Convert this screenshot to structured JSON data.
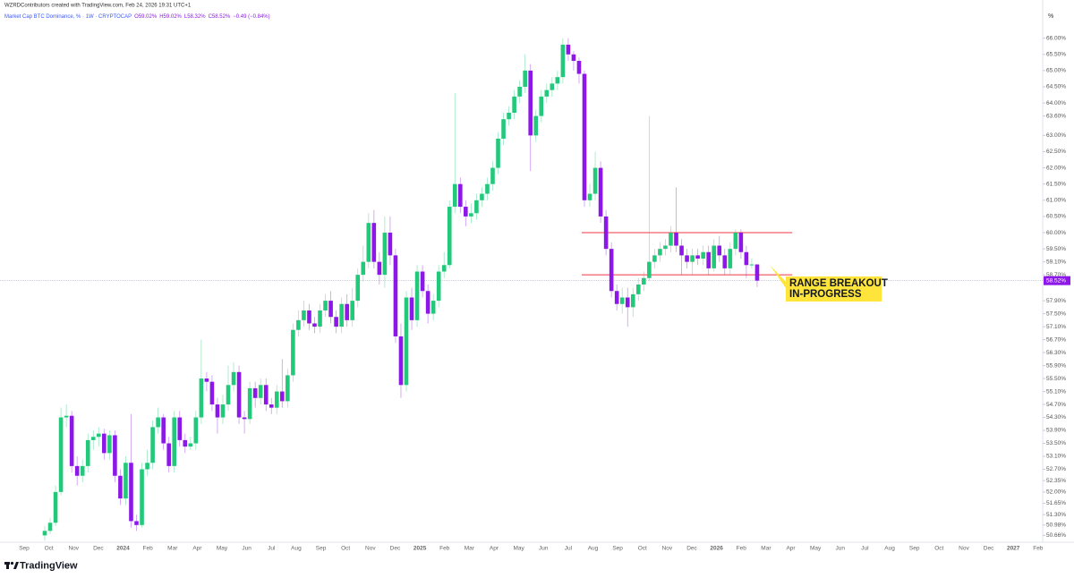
{
  "chart_data": {
    "type": "candlestick",
    "attribution": "WZRDContributors created with TradingView.com, Feb 24, 2026 19:31 UTC+1",
    "title": "Market Cap BTC Dominance, % · 1W · CRYPTOCAP",
    "ohlc_legend": [
      "O59.02%",
      "H59.02%",
      "L58.32%",
      "C58.52%",
      "−0.49 (−0.84%)"
    ],
    "y_axis_unit": "%",
    "categories": [
      "Sep",
      "Oct",
      "Nov",
      "Dec",
      "2024",
      "Feb",
      "Mar",
      "Apr",
      "May",
      "Jun",
      "Jul",
      "Aug",
      "Sep",
      "Oct",
      "Nov",
      "Dec",
      "2025",
      "Feb",
      "Mar",
      "Apr",
      "May",
      "Jun",
      "Jul",
      "Aug",
      "Sep",
      "Oct",
      "Nov",
      "Dec",
      "2026",
      "Feb",
      "Mar",
      "Apr",
      "May",
      "Jun",
      "Jul",
      "Aug",
      "Sep",
      "Oct",
      "Nov",
      "Dec",
      "2027",
      "Feb"
    ],
    "open": [
      50.66,
      50.8,
      51.05,
      52.0,
      54.3,
      54.35,
      52.8,
      52.5,
      52.8,
      53.6,
      53.7,
      53.8,
      53.2,
      53.75,
      52.5,
      51.8,
      52.9,
      51.1,
      50.98,
      52.7,
      52.9,
      54.0,
      54.3,
      53.5,
      52.8,
      54.3,
      53.6,
      53.4,
      53.5,
      54.3,
      55.5,
      55.4,
      54.7,
      54.3,
      54.7,
      55.3,
      55.7,
      54.3,
      54.25,
      55.2,
      54.9,
      55.3,
      54.7,
      54.6,
      55.1,
      54.8,
      55.6,
      57.0,
      57.3,
      57.6,
      57.2,
      57.1,
      57.6,
      57.9,
      57.4,
      57.1,
      57.8,
      57.3,
      57.9,
      58.7,
      59.1,
      60.3,
      59.1,
      58.7,
      60.0,
      59.3,
      56.8,
      55.3,
      58.0,
      57.3,
      58.8,
      58.2,
      57.5,
      57.9,
      58.8,
      59.0,
      60.8,
      61.5,
      60.8,
      60.5,
      60.6,
      61.0,
      61.2,
      61.5,
      62.0,
      62.9,
      63.5,
      63.7,
      64.2,
      64.5,
      65.0,
      63.0,
      63.6,
      64.2,
      64.4,
      64.6,
      64.8,
      65.8,
      65.5,
      65.3,
      64.9,
      61.0,
      61.2,
      62.0,
      60.5,
      59.5,
      58.2,
      57.8,
      58.0,
      57.7,
      58.1,
      58.4,
      58.6,
      59.1,
      59.3,
      59.5,
      59.6,
      60.0,
      59.6,
      59.3,
      59.1,
      59.3,
      59.2,
      59.4,
      58.9,
      59.6,
      59.3,
      58.9,
      59.5,
      60.0,
      59.4,
      59.0,
      59.02
    ],
    "high": [
      50.95,
      51.2,
      52.2,
      54.6,
      54.7,
      54.5,
      53.1,
      53.0,
      53.8,
      53.9,
      54.0,
      53.95,
      53.9,
      53.9,
      52.7,
      53.1,
      54.4,
      51.3,
      52.9,
      53.3,
      54.2,
      54.6,
      54.4,
      53.7,
      54.5,
      54.5,
      53.8,
      53.7,
      54.5,
      56.7,
      55.7,
      55.6,
      54.9,
      55.0,
      55.9,
      56.0,
      55.9,
      54.5,
      55.4,
      55.4,
      55.5,
      55.5,
      54.9,
      55.3,
      56.1,
      55.8,
      57.2,
      57.6,
      57.9,
      57.8,
      57.4,
      57.8,
      58.1,
      58.2,
      57.6,
      58.0,
      58.1,
      58.3,
      58.9,
      59.6,
      60.6,
      60.7,
      59.4,
      60.5,
      60.5,
      59.5,
      57.2,
      58.2,
      58.3,
      59.0,
      59.0,
      58.4,
      58.1,
      59.0,
      59.4,
      61.0,
      64.3,
      61.7,
      61.0,
      60.9,
      61.2,
      61.4,
      61.7,
      62.2,
      63.1,
      63.7,
      63.9,
      64.4,
      64.7,
      65.5,
      65.2,
      63.8,
      64.4,
      64.6,
      64.8,
      65.0,
      66.0,
      66.0,
      65.6,
      65.4,
      65.0,
      61.5,
      62.5,
      62.2,
      60.7,
      59.7,
      58.4,
      58.3,
      58.3,
      58.3,
      58.6,
      58.8,
      63.6,
      59.5,
      59.7,
      59.8,
      60.2,
      61.4,
      59.8,
      59.5,
      59.5,
      59.5,
      59.6,
      59.6,
      59.8,
      59.9,
      59.5,
      59.7,
      60.1,
      60.1,
      59.6,
      59.2,
      59.02
    ],
    "low": [
      50.5,
      50.7,
      50.95,
      51.9,
      54.0,
      52.6,
      52.2,
      52.3,
      52.6,
      53.3,
      53.4,
      53.0,
      53.0,
      52.3,
      51.6,
      51.6,
      50.9,
      50.8,
      50.9,
      52.5,
      52.7,
      53.8,
      53.3,
      52.6,
      52.6,
      53.4,
      53.2,
      53.3,
      53.3,
      54.1,
      55.1,
      54.5,
      53.8,
      54.1,
      54.5,
      55.1,
      54.1,
      53.8,
      54.1,
      54.6,
      54.7,
      54.5,
      54.4,
      54.4,
      54.6,
      54.6,
      55.4,
      56.8,
      57.1,
      57.0,
      56.9,
      56.9,
      57.4,
      57.2,
      56.9,
      56.9,
      57.1,
      57.1,
      57.7,
      58.5,
      58.9,
      58.9,
      58.4,
      58.3,
      59.0,
      56.6,
      54.9,
      55.1,
      57.0,
      57.1,
      58.0,
      57.2,
      57.3,
      57.7,
      58.6,
      58.9,
      60.6,
      60.6,
      60.2,
      60.3,
      60.4,
      60.8,
      61.0,
      61.3,
      61.8,
      62.7,
      63.3,
      63.5,
      64.0,
      64.3,
      61.9,
      62.8,
      63.4,
      64.0,
      64.2,
      64.4,
      64.6,
      65.3,
      65.0,
      64.6,
      60.8,
      60.8,
      61.0,
      60.3,
      59.3,
      58.0,
      57.6,
      57.5,
      57.1,
      57.4,
      57.9,
      58.2,
      58.5,
      58.9,
      59.1,
      59.3,
      59.4,
      59.4,
      58.7,
      58.9,
      58.7,
      59.0,
      59.0,
      58.7,
      58.8,
      59.1,
      58.7,
      58.7,
      59.3,
      59.2,
      58.6,
      58.9,
      58.32
    ],
    "close": [
      50.8,
      51.05,
      52.0,
      54.3,
      54.35,
      52.8,
      52.5,
      52.8,
      53.6,
      53.7,
      53.8,
      53.2,
      53.75,
      52.5,
      51.8,
      52.9,
      51.1,
      50.98,
      52.7,
      52.9,
      54.0,
      54.3,
      53.5,
      52.8,
      54.3,
      53.6,
      53.4,
      53.5,
      54.3,
      55.5,
      55.4,
      54.7,
      54.3,
      54.7,
      55.3,
      55.7,
      54.3,
      54.25,
      55.2,
      54.9,
      55.3,
      54.7,
      54.6,
      55.1,
      54.8,
      55.6,
      57.0,
      57.3,
      57.6,
      57.2,
      57.1,
      57.6,
      57.9,
      57.4,
      57.1,
      57.8,
      57.3,
      57.9,
      58.7,
      59.1,
      60.3,
      59.1,
      58.7,
      60.0,
      59.3,
      56.8,
      55.3,
      58.0,
      57.3,
      58.8,
      58.2,
      57.5,
      57.9,
      58.8,
      59.0,
      60.8,
      61.5,
      60.8,
      60.5,
      60.6,
      61.0,
      61.2,
      61.5,
      62.0,
      62.9,
      63.5,
      63.7,
      64.2,
      64.5,
      65.0,
      63.0,
      63.6,
      64.2,
      64.4,
      64.6,
      64.8,
      65.8,
      65.5,
      65.3,
      64.9,
      61.0,
      61.2,
      62.0,
      60.5,
      59.5,
      58.2,
      57.8,
      58.0,
      57.7,
      58.1,
      58.4,
      58.6,
      59.1,
      59.3,
      59.5,
      59.6,
      60.0,
      59.6,
      59.3,
      59.1,
      59.3,
      59.2,
      59.4,
      58.9,
      59.6,
      59.3,
      58.9,
      59.5,
      60.0,
      59.4,
      59.0,
      59.02,
      58.52
    ],
    "up_color": "#22c97a",
    "down_color": "#8c17e8",
    "ylim": [
      50.45,
      66.35
    ],
    "yticks": [
      {
        "value": 66,
        "label": "66.00%"
      },
      {
        "value": 65.5,
        "label": "65.50%"
      },
      {
        "value": 65,
        "label": "65.00%"
      },
      {
        "value": 64.5,
        "label": "64.50%"
      },
      {
        "value": 64,
        "label": "64.00%"
      },
      {
        "value": 63.6,
        "label": "63.60%"
      },
      {
        "value": 63,
        "label": "63.00%"
      },
      {
        "value": 62.5,
        "label": "62.50%"
      },
      {
        "value": 62,
        "label": "62.00%"
      },
      {
        "value": 61.5,
        "label": "61.50%"
      },
      {
        "value": 61,
        "label": "61.00%"
      },
      {
        "value": 60.5,
        "label": "60.50%"
      },
      {
        "value": 60,
        "label": "60.00%"
      },
      {
        "value": 59.5,
        "label": "59.50%"
      },
      {
        "value": 59.1,
        "label": "59.10%"
      },
      {
        "value": 58.7,
        "label": "58.70%"
      },
      {
        "value": 57.9,
        "label": "57.90%"
      },
      {
        "value": 57.5,
        "label": "57.50%"
      },
      {
        "value": 57.1,
        "label": "57.10%"
      },
      {
        "value": 56.7,
        "label": "56.70%"
      },
      {
        "value": 56.3,
        "label": "56.30%"
      },
      {
        "value": 55.9,
        "label": "55.90%"
      },
      {
        "value": 55.5,
        "label": "55.50%"
      },
      {
        "value": 55.1,
        "label": "55.10%"
      },
      {
        "value": 54.7,
        "label": "54.70%"
      },
      {
        "value": 54.3,
        "label": "54.30%"
      },
      {
        "value": 53.9,
        "label": "53.90%"
      },
      {
        "value": 53.5,
        "label": "53.50%"
      },
      {
        "value": 53.1,
        "label": "53.10%"
      },
      {
        "value": 52.7,
        "label": "52.70%"
      },
      {
        "value": 52.35,
        "label": "52.35%"
      },
      {
        "value": 52,
        "label": "52.00%"
      },
      {
        "value": 51.65,
        "label": "51.65%"
      },
      {
        "value": 51.3,
        "label": "51.30%"
      },
      {
        "value": 50.98,
        "label": "50.98%"
      },
      {
        "value": 50.66,
        "label": "50.66%"
      }
    ],
    "grid": false,
    "last_price_label": "58.52%",
    "levels": [
      60.0,
      58.7
    ],
    "level_color": "#f23645",
    "annotation": [
      "RANGE BREAKOUT",
      "IN-PROGRESS"
    ],
    "brand": "TradingView"
  }
}
